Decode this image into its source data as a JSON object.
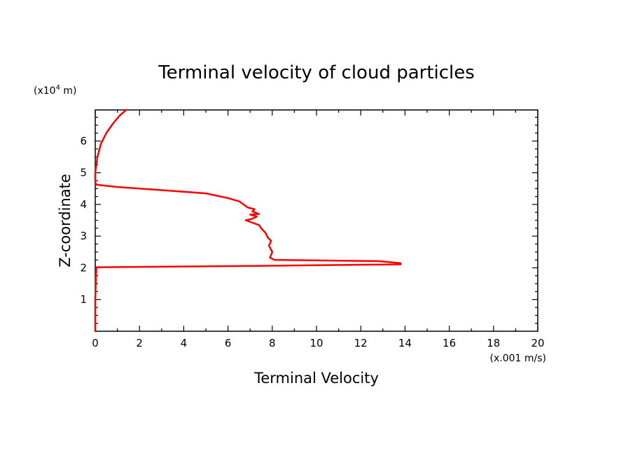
{
  "chart_data": {
    "type": "line",
    "title": "Terminal velocity of cloud particles",
    "xlabel": "Terminal Velocity",
    "ylabel": "Z-coordinate",
    "x_unit": "(x.001 m/s)",
    "y_unit_prefix": "(x10",
    "y_unit_exp": "4",
    "y_unit_suffix": " m)",
    "xlim": [
      0,
      20
    ],
    "ylim": [
      0,
      6.98
    ],
    "x_ticks": [
      "0",
      "2",
      "4",
      "6",
      "8",
      "10",
      "12",
      "14",
      "16",
      "18",
      "20"
    ],
    "y_ticks": [
      "1",
      "2",
      "3",
      "4",
      "5",
      "6"
    ],
    "grid": false,
    "series": [
      {
        "color": "#ff0000",
        "x": [
          0,
          0,
          0.05,
          7,
          13.8,
          13.8,
          12.8,
          8.1,
          7.9,
          8.0,
          7.85,
          7.95,
          7.8,
          7.7,
          7.5,
          7.4,
          7.2,
          6.8,
          7.1,
          7.3,
          7.0,
          7.4,
          7.1,
          7.2,
          6.9,
          6.6,
          6.5,
          6.0,
          5.0,
          3.0,
          1.0,
          0.05,
          0,
          0,
          0.1,
          0.25,
          0.5,
          0.8,
          1.1,
          1.4
        ],
        "y": [
          0,
          1.0,
          2.02,
          2.06,
          2.11,
          2.15,
          2.21,
          2.25,
          2.32,
          2.5,
          2.7,
          2.85,
          2.95,
          3.1,
          3.25,
          3.35,
          3.4,
          3.5,
          3.55,
          3.62,
          3.68,
          3.7,
          3.78,
          3.85,
          3.9,
          4.05,
          4.1,
          4.2,
          4.35,
          4.45,
          4.55,
          4.62,
          4.7,
          5.0,
          5.5,
          5.9,
          6.25,
          6.55,
          6.8,
          6.98
        ]
      }
    ]
  }
}
